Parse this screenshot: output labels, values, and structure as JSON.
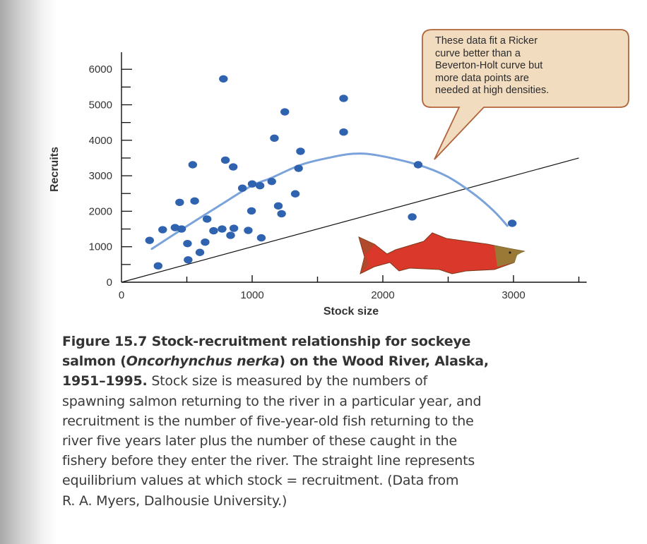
{
  "chart_data": {
    "type": "scatter",
    "xlabel": "Stock size",
    "ylabel": "Recruits",
    "xlim": [
      0,
      3500
    ],
    "ylim": [
      0,
      6000
    ],
    "x_ticks": [
      0,
      1000,
      2000,
      3000
    ],
    "y_ticks": [
      0,
      1000,
      2000,
      3000,
      4000,
      5000,
      6000
    ],
    "grid": false,
    "point_color": "#2f63b0",
    "points": [
      [
        780,
        5730
      ],
      [
        1700,
        5180
      ],
      [
        1250,
        4800
      ],
      [
        1700,
        4230
      ],
      [
        1170,
        4060
      ],
      [
        1370,
        3690
      ],
      [
        545,
        3310
      ],
      [
        795,
        3440
      ],
      [
        855,
        3250
      ],
      [
        1355,
        3210
      ],
      [
        925,
        2650
      ],
      [
        1000,
        2770
      ],
      [
        1060,
        2720
      ],
      [
        1150,
        2840
      ],
      [
        1330,
        2490
      ],
      [
        445,
        2250
      ],
      [
        560,
        2290
      ],
      [
        1200,
        2150
      ],
      [
        995,
        2010
      ],
      [
        1225,
        1930
      ],
      [
        655,
        1780
      ],
      [
        410,
        1540
      ],
      [
        315,
        1480
      ],
      [
        460,
        1500
      ],
      [
        705,
        1450
      ],
      [
        770,
        1500
      ],
      [
        860,
        1520
      ],
      [
        835,
        1320
      ],
      [
        970,
        1460
      ],
      [
        1070,
        1250
      ],
      [
        215,
        1180
      ],
      [
        505,
        1090
      ],
      [
        640,
        1130
      ],
      [
        600,
        840
      ],
      [
        510,
        630
      ],
      [
        280,
        460
      ],
      [
        2270,
        3310
      ],
      [
        2225,
        1840
      ],
      [
        2990,
        1660
      ]
    ],
    "ricker_curve": {
      "color": "#7aa3db",
      "points": [
        [
          232,
          940
        ],
        [
          475,
          1520
        ],
        [
          763,
          2190
        ],
        [
          997,
          2720
        ],
        [
          1141,
          2930
        ],
        [
          1375,
          3310
        ],
        [
          1591,
          3510
        ],
        [
          1773,
          3620
        ],
        [
          1953,
          3580
        ],
        [
          2269,
          3310
        ],
        [
          2493,
          2980
        ],
        [
          2710,
          2450
        ],
        [
          2854,
          1990
        ],
        [
          2953,
          1590
        ]
      ]
    },
    "equilibrium_line": {
      "color": "#111111",
      "points": [
        [
          0,
          0
        ],
        [
          3500,
          3500
        ]
      ]
    },
    "annotation": [
      "These data fit a Ricker",
      "curve better than a",
      "Beverton-Holt curve but",
      "more data points are",
      "needed at high densities."
    ],
    "annotation_colors": {
      "fill": "#f2dcc0",
      "border": "#b0643a"
    },
    "fish_color": "#d9382a"
  },
  "caption": {
    "lines": [
      [
        {
          "t": "Figure 15.7  Stock-recruitment relationship for sockeye",
          "s": "b"
        }
      ],
      [
        {
          "t": "salmon (",
          "s": "b"
        },
        {
          "t": "Oncorhynchus nerka",
          "s": "b i"
        },
        {
          "t": ") on the Wood River, Alaska,",
          "s": "b"
        }
      ],
      [
        {
          "t": "1951–1995.",
          "s": "b"
        },
        {
          "t": " Stock size is measured by the numbers of",
          "s": ""
        }
      ],
      [
        {
          "t": "spawning salmon returning to the river in a particular year, and",
          "s": ""
        }
      ],
      [
        {
          "t": "recruitment is the number of five-year-old fish returning to the",
          "s": ""
        }
      ],
      [
        {
          "t": "river five years later plus the number of these caught in the",
          "s": ""
        }
      ],
      [
        {
          "t": "fishery before they enter the river. The straight line represents",
          "s": ""
        }
      ],
      [
        {
          "t": "equilibrium values at which stock = recruitment. (Data from",
          "s": ""
        }
      ],
      [
        {
          "t": "R. A. Myers, Dalhousie University.)",
          "s": ""
        }
      ]
    ]
  }
}
